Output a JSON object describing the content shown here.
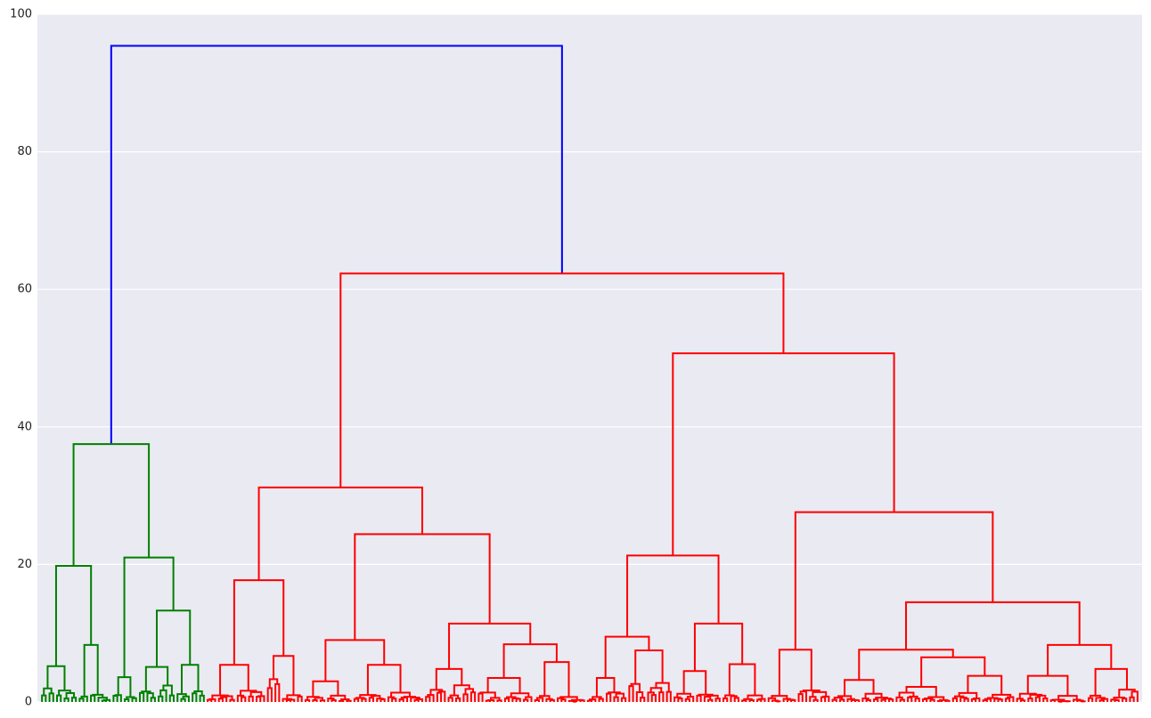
{
  "chart_data": {
    "type": "dendrogram",
    "title": "",
    "xlabel": "",
    "ylabel": "",
    "ylim": [
      0,
      100
    ],
    "y_ticks": [
      "0",
      "20",
      "40",
      "60",
      "80",
      "100"
    ],
    "grid": true,
    "x_tick_labels_visible": false,
    "background_color": "#eaeaf2",
    "colors": {
      "root": "#0000ff",
      "cluster_small": "#008000",
      "cluster_large": "#ff0000"
    },
    "top_merges": [
      {
        "height": 95.4,
        "joins": [
          "small cluster",
          "large cluster"
        ],
        "color": "#0000ff"
      },
      {
        "height": 62.3,
        "joins": [
          "large left",
          "large right"
        ],
        "color": "#ff0000"
      },
      {
        "height": 50.7,
        "joins": [
          "right-A",
          "right-B"
        ],
        "color": "#ff0000"
      },
      {
        "height": 37.5,
        "joins": [
          "small-A",
          "small-B"
        ],
        "color": "#008000"
      },
      {
        "height": 31.2,
        "joins": [
          "left-A",
          "left-B"
        ],
        "color": "#ff0000"
      },
      {
        "height": 27.6,
        "joins": [
          "right-B1",
          "right-B2"
        ],
        "color": "#ff0000"
      },
      {
        "height": 24.4,
        "joins": [
          "left-B1",
          "left-B2"
        ],
        "color": "#ff0000"
      },
      {
        "height": 21.3,
        "joins": [
          "right-A1",
          "right-A2"
        ],
        "color": "#ff0000"
      },
      {
        "height": 21.0,
        "joins": [
          "small-B1",
          "small-B2"
        ],
        "color": "#008000"
      },
      {
        "height": 19.8,
        "joins": [
          "small-A1",
          "small-A2"
        ],
        "color": "#008000"
      },
      {
        "height": 17.7,
        "joins": [
          "left-A1",
          "left-A2"
        ],
        "color": "#ff0000"
      },
      {
        "height": 14.5,
        "joins": [
          "right-B2a",
          "right-B2b"
        ],
        "color": "#ff0000"
      },
      {
        "height": 13.3,
        "joins": [
          "small-B2a",
          "small-B2b"
        ],
        "color": "#008000"
      }
    ]
  }
}
